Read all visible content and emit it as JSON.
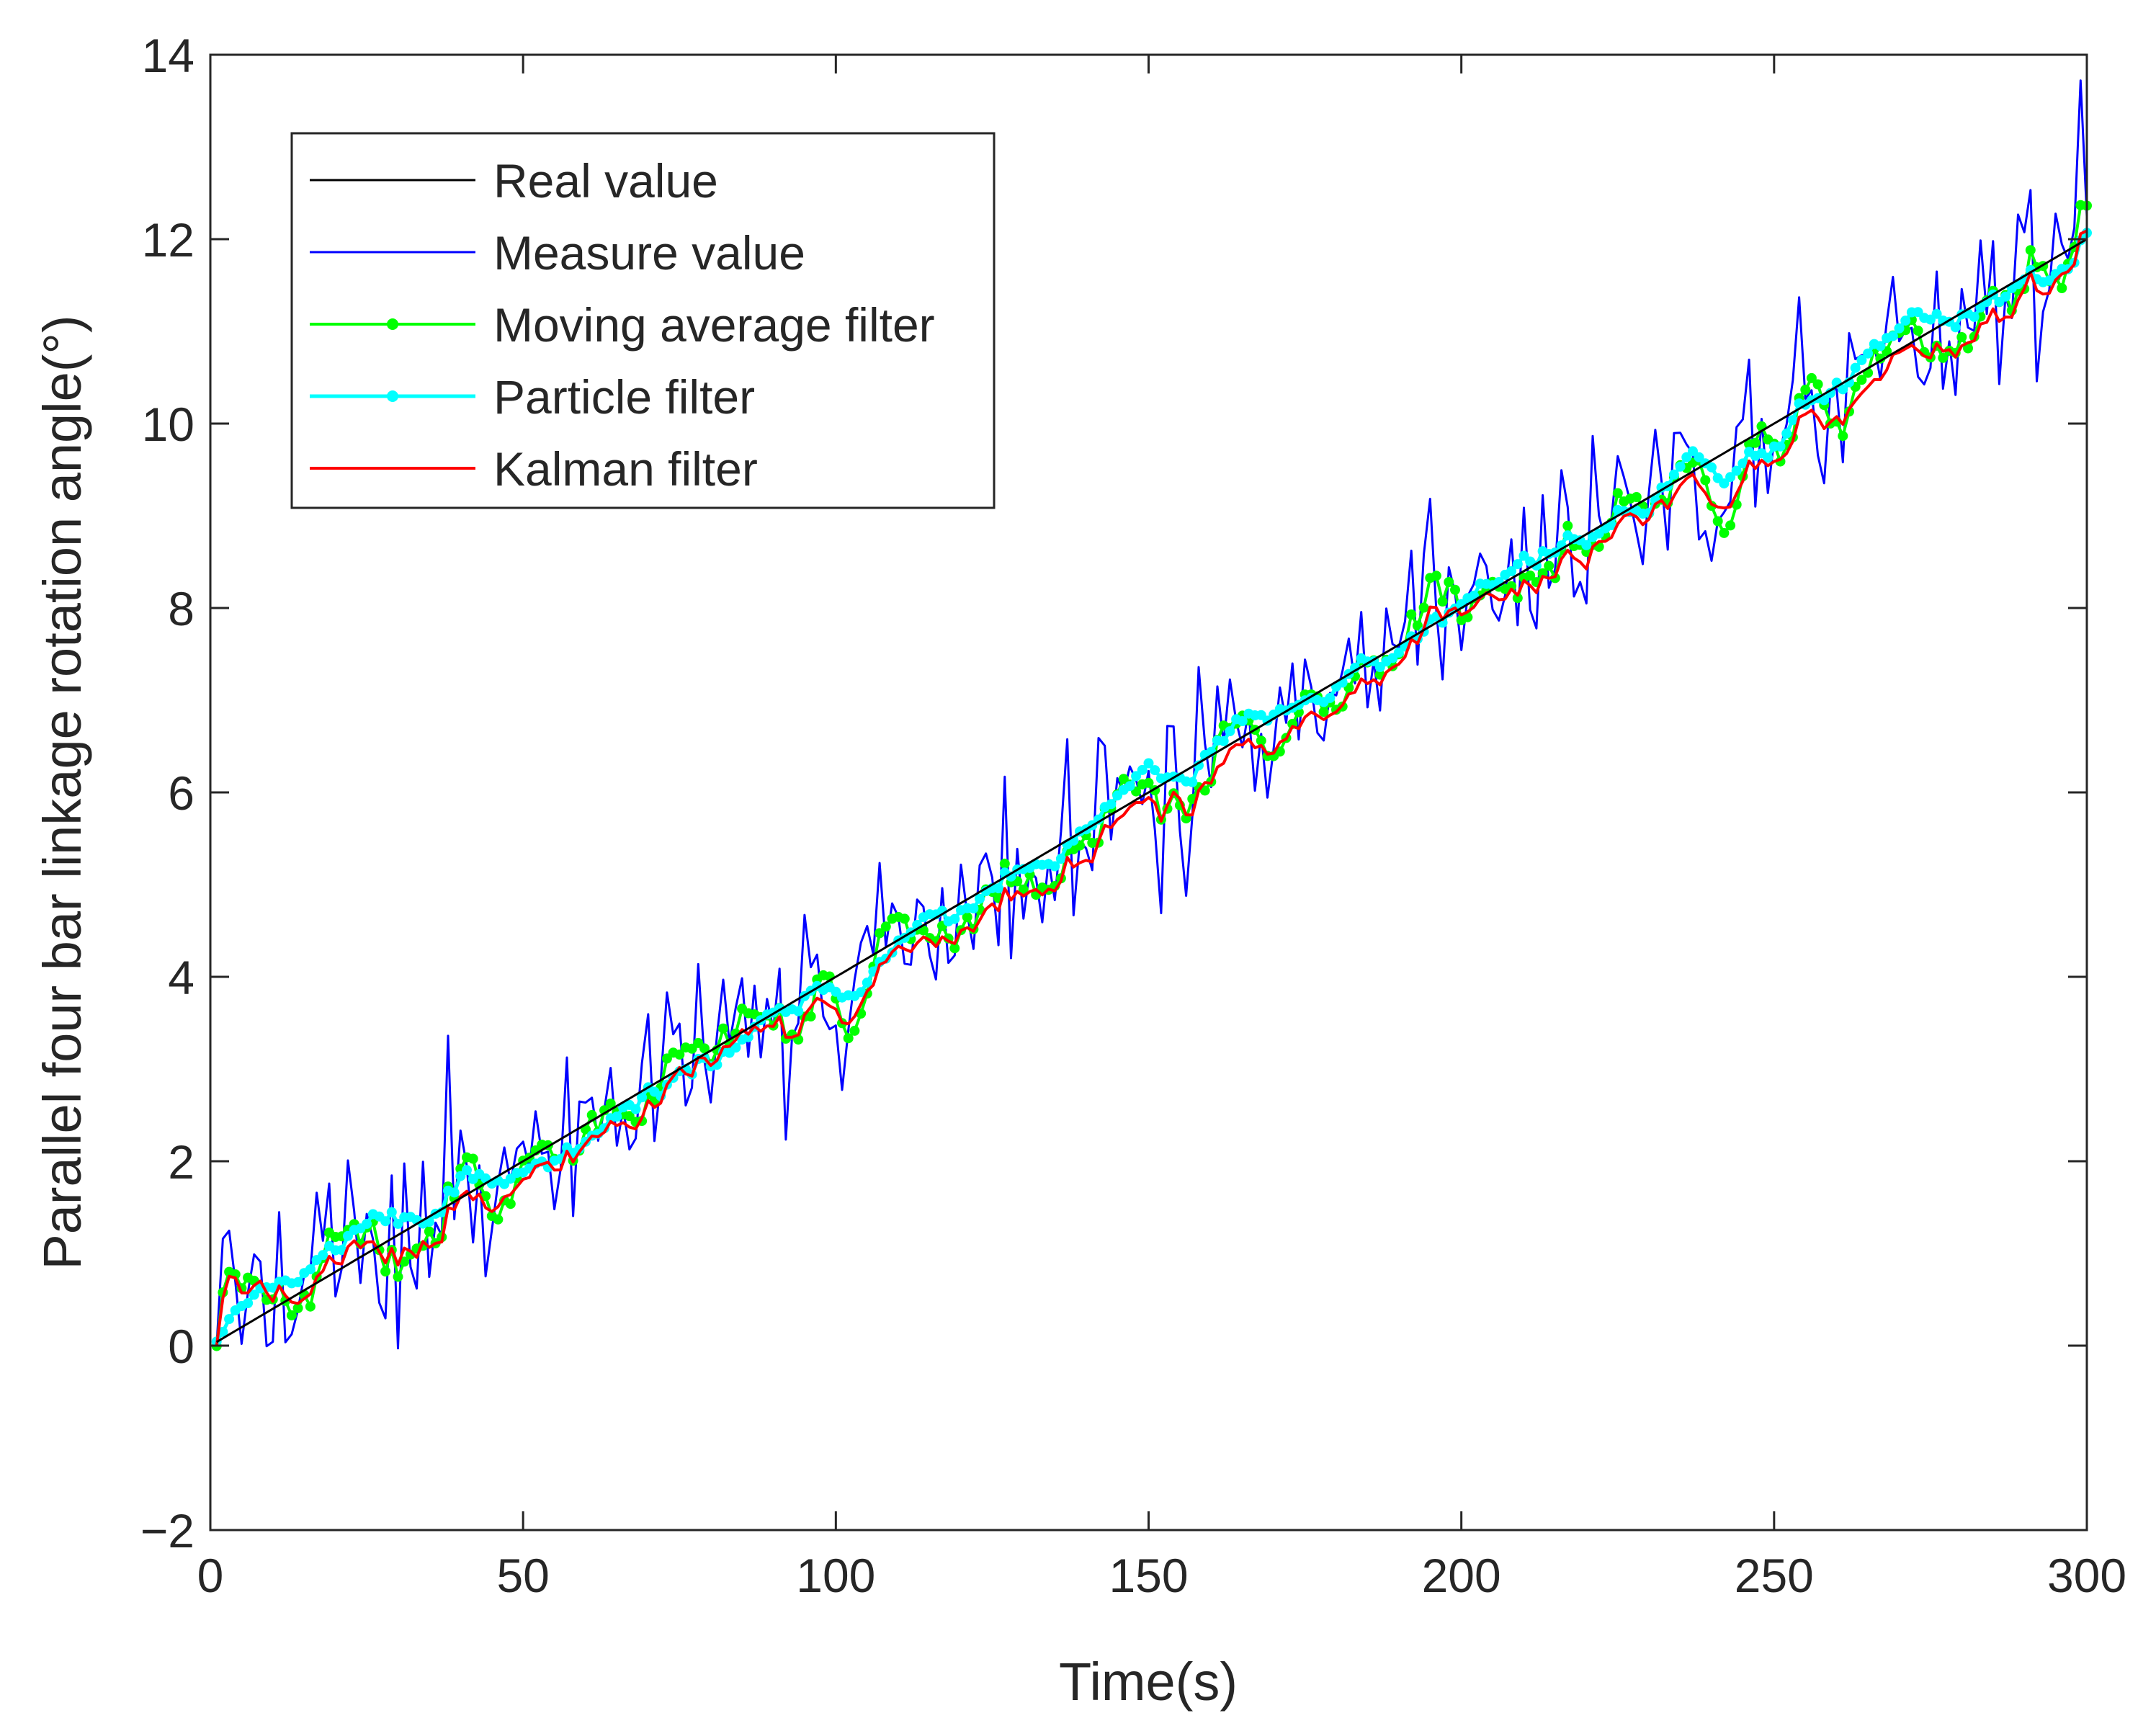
{
  "chart_data": {
    "type": "line",
    "title": "",
    "xlabel": "Time(s)",
    "ylabel": "Parallel four bar linkage rotation angle(°)",
    "xlim": [
      0,
      300
    ],
    "ylim": [
      -2,
      14
    ],
    "xticks": [
      0,
      50,
      100,
      150,
      200,
      250,
      300
    ],
    "xtick_labels": [
      "0",
      "50",
      "100",
      "150",
      "200",
      "250",
      "300"
    ],
    "yticks": [
      -2,
      0,
      2,
      4,
      6,
      8,
      10,
      12,
      14
    ],
    "ytick_labels": [
      "−2",
      "0",
      "2",
      "4",
      "6",
      "8",
      "10",
      "12",
      "14"
    ],
    "grid": false,
    "legend_position": "top-left",
    "sample_step_s": 1,
    "series": [
      {
        "name": "Real value",
        "color": "#000000",
        "marker": "none",
        "style": "real",
        "slope": 0.04
      },
      {
        "name": "Measure value",
        "color": "#0000ff",
        "marker": "none",
        "style": "measure",
        "noise_sd": 0.55
      },
      {
        "name": "Moving average filter",
        "color": "#00ff00",
        "marker": "dot",
        "style": "moving_average",
        "window": 5
      },
      {
        "name": "Particle filter",
        "color": "#00ffff",
        "marker": "dot",
        "style": "particle"
      },
      {
        "name": "Kalman filter",
        "color": "#ff0000",
        "marker": "none",
        "style": "kalman"
      }
    ]
  }
}
